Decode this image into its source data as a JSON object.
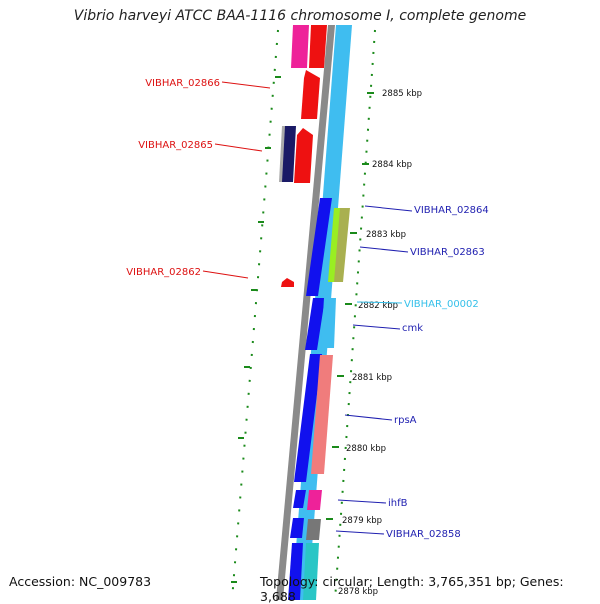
{
  "title": "Vibrio harveyi ATCC BAA-1116 chromosome I, complete genome",
  "accession": "Accession: NC_009783",
  "topology": "Topology: circular; Length: 3,765,351 bp; Genes: 3,688",
  "colors": {
    "reverse_label": "#dd1111",
    "forward_label": "#1f1fb0",
    "rna_label": "#35c0ea",
    "tick": "#1a8a1a",
    "backbone": "#8a8a8a",
    "cds_forward": "#1111ee",
    "cds_reverse": "#ee1111",
    "light_blue": "#3fbdf0"
  },
  "ticks": [
    "2885 kbp",
    "2884 kbp",
    "2883 kbp",
    "2882 kbp",
    "2881 kbp",
    "2880 kbp",
    "2879 kbp",
    "2878 kbp"
  ],
  "reverse_labels": [
    "VIBHAR_02866",
    "VIBHAR_02865",
    "VIBHAR_02862"
  ],
  "forward_labels": [
    "VIBHAR_02864",
    "VIBHAR_02863",
    "VIBHAR_00002",
    "cmk",
    "rpsA",
    "ihfB",
    "VIBHAR_02858"
  ]
}
